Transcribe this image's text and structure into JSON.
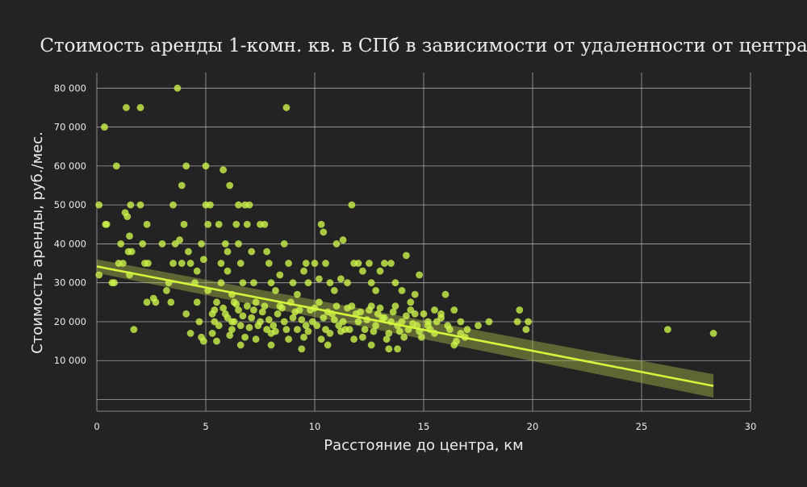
{
  "chart_data": {
    "type": "scatter",
    "title": "Стоимость аренды 1-комн. кв. в СПб в зависимости от удаленности от центра",
    "xlabel": "Расстояние до центра, км",
    "ylabel": "Стоимость аренды, руб./мес.",
    "xlim": [
      0,
      30
    ],
    "ylim": [
      -3000,
      84000
    ],
    "x_ticks": [
      0,
      5,
      10,
      15,
      20,
      25,
      30
    ],
    "x_tick_labels": [
      "0",
      "5",
      "10",
      "15",
      "20",
      "25",
      "30"
    ],
    "y_ticks": [
      10000,
      20000,
      30000,
      40000,
      50000,
      60000,
      70000,
      80000
    ],
    "y_tick_labels": [
      "10 000",
      "20 000",
      "30 000",
      "40 000",
      "50 000",
      "60 000",
      "70 000",
      "80 000"
    ],
    "grid": true,
    "colors": {
      "background": "#232323",
      "grid": "#bdbdbd",
      "points": "#ccf24a",
      "regression": "#d4f53c",
      "confidence_band": "#a9b84a",
      "text": "#ececec"
    },
    "regression": {
      "x_start": 0,
      "y_start": 34200,
      "x_end": 28.3,
      "y_end": 3500
    },
    "confidence_band": {
      "lower_start": 32500,
      "upper_start": 36000,
      "lower_end": 500,
      "upper_end": 6500
    },
    "points": [
      [
        0.1,
        50000
      ],
      [
        0.1,
        32000
      ],
      [
        0.35,
        70000
      ],
      [
        0.4,
        45000
      ],
      [
        0.45,
        45000
      ],
      [
        0.7,
        30000
      ],
      [
        0.8,
        30000
      ],
      [
        0.9,
        60000
      ],
      [
        1.0,
        35000
      ],
      [
        1.1,
        40000
      ],
      [
        1.2,
        35000
      ],
      [
        1.3,
        48000
      ],
      [
        1.35,
        75000
      ],
      [
        1.4,
        47000
      ],
      [
        1.45,
        38000
      ],
      [
        1.5,
        42000
      ],
      [
        1.5,
        32000
      ],
      [
        1.55,
        50000
      ],
      [
        1.6,
        38000
      ],
      [
        1.7,
        18000
      ],
      [
        2.0,
        75000
      ],
      [
        2.0,
        50000
      ],
      [
        2.1,
        40000
      ],
      [
        2.2,
        35000
      ],
      [
        2.3,
        45000
      ],
      [
        2.35,
        35000
      ],
      [
        2.3,
        25000
      ],
      [
        2.6,
        26000
      ],
      [
        2.7,
        25000
      ],
      [
        3.0,
        40000
      ],
      [
        3.2,
        28000
      ],
      [
        3.3,
        30000
      ],
      [
        3.4,
        25000
      ],
      [
        3.5,
        35000
      ],
      [
        3.5,
        50000
      ],
      [
        3.6,
        40000
      ],
      [
        3.7,
        80000
      ],
      [
        3.8,
        41000
      ],
      [
        3.9,
        55000
      ],
      [
        3.9,
        35000
      ],
      [
        4.0,
        45000
      ],
      [
        4.1,
        60000
      ],
      [
        4.1,
        22000
      ],
      [
        4.2,
        38000
      ],
      [
        4.3,
        35000
      ],
      [
        4.3,
        17000
      ],
      [
        4.5,
        30000
      ],
      [
        4.6,
        33000
      ],
      [
        4.6,
        25000
      ],
      [
        4.7,
        20000
      ],
      [
        4.8,
        16000
      ],
      [
        4.8,
        40000
      ],
      [
        4.9,
        15000
      ],
      [
        4.9,
        36000
      ],
      [
        5.0,
        60000
      ],
      [
        5.0,
        50000
      ],
      [
        5.1,
        45000
      ],
      [
        5.1,
        28000
      ],
      [
        5.2,
        50000
      ],
      [
        5.3,
        22000
      ],
      [
        5.4,
        23000
      ],
      [
        5.5,
        15000
      ],
      [
        5.6,
        45000
      ],
      [
        5.7,
        35000
      ],
      [
        5.7,
        30000
      ],
      [
        5.8,
        59000
      ],
      [
        5.9,
        40000
      ],
      [
        6.0,
        38000
      ],
      [
        6.0,
        33000
      ],
      [
        6.1,
        55000
      ],
      [
        6.2,
        27000
      ],
      [
        6.3,
        25000
      ],
      [
        6.3,
        20000
      ],
      [
        6.4,
        45000
      ],
      [
        6.5,
        50000
      ],
      [
        6.5,
        40000
      ],
      [
        6.6,
        35000
      ],
      [
        6.7,
        30000
      ],
      [
        6.8,
        50000
      ],
      [
        6.9,
        45000
      ],
      [
        7.0,
        50000
      ],
      [
        7.1,
        38000
      ],
      [
        7.2,
        30000
      ],
      [
        7.3,
        25000
      ],
      [
        7.5,
        45000
      ],
      [
        7.7,
        45000
      ],
      [
        7.8,
        38000
      ],
      [
        7.9,
        35000
      ],
      [
        8.0,
        30000
      ],
      [
        8.2,
        28000
      ],
      [
        8.4,
        32000
      ],
      [
        8.6,
        40000
      ],
      [
        8.7,
        75000
      ],
      [
        8.8,
        35000
      ],
      [
        9.0,
        30000
      ],
      [
        9.2,
        27000
      ],
      [
        9.5,
        33000
      ],
      [
        9.6,
        35000
      ],
      [
        9.7,
        30000
      ],
      [
        10.0,
        35000
      ],
      [
        10.2,
        31000
      ],
      [
        10.3,
        45000
      ],
      [
        10.4,
        43000
      ],
      [
        10.5,
        35000
      ],
      [
        10.7,
        30000
      ],
      [
        10.9,
        28000
      ],
      [
        11.0,
        40000
      ],
      [
        11.2,
        31000
      ],
      [
        11.3,
        41000
      ],
      [
        11.5,
        30000
      ],
      [
        11.7,
        50000
      ],
      [
        11.8,
        35000
      ],
      [
        12.0,
        35000
      ],
      [
        12.2,
        33000
      ],
      [
        12.5,
        35000
      ],
      [
        12.6,
        30000
      ],
      [
        12.8,
        28000
      ],
      [
        13.0,
        33000
      ],
      [
        13.2,
        35000
      ],
      [
        13.5,
        35000
      ],
      [
        13.7,
        30000
      ],
      [
        14.0,
        28000
      ],
      [
        14.2,
        37000
      ],
      [
        14.4,
        25000
      ],
      [
        14.6,
        27000
      ],
      [
        14.8,
        32000
      ],
      [
        15.0,
        22000
      ],
      [
        15.2,
        20000
      ],
      [
        15.5,
        23000
      ],
      [
        15.6,
        20000
      ],
      [
        15.8,
        22000
      ],
      [
        16.0,
        27000
      ],
      [
        16.2,
        18000
      ],
      [
        16.5,
        15000
      ],
      [
        16.7,
        17000
      ],
      [
        17.0,
        18000
      ],
      [
        17.5,
        19000
      ],
      [
        18.0,
        20000
      ],
      [
        19.3,
        20000
      ],
      [
        19.4,
        23000
      ],
      [
        19.7,
        18000
      ],
      [
        19.8,
        20000
      ],
      [
        26.2,
        18000
      ],
      [
        28.3,
        17000
      ],
      [
        5.3,
        17000
      ],
      [
        5.6,
        19000
      ],
      [
        5.9,
        22000
      ],
      [
        6.2,
        18000
      ],
      [
        6.5,
        23000
      ],
      [
        6.8,
        16000
      ],
      [
        7.1,
        21000
      ],
      [
        7.4,
        19000
      ],
      [
        7.7,
        24000
      ],
      [
        8.0,
        17000
      ],
      [
        8.3,
        22000
      ],
      [
        8.6,
        20000
      ],
      [
        8.9,
        25000
      ],
      [
        9.2,
        18000
      ],
      [
        9.5,
        16000
      ],
      [
        9.8,
        23000
      ],
      [
        10.1,
        19000
      ],
      [
        10.4,
        21000
      ],
      [
        10.7,
        17000
      ],
      [
        11.0,
        24000
      ],
      [
        11.3,
        20000
      ],
      [
        11.6,
        18000
      ],
      [
        11.9,
        22000
      ],
      [
        12.2,
        16000
      ],
      [
        12.5,
        23000
      ],
      [
        12.8,
        19000
      ],
      [
        13.1,
        21000
      ],
      [
        13.4,
        17000
      ],
      [
        13.7,
        24000
      ],
      [
        14.0,
        20000
      ],
      [
        14.3,
        18000
      ],
      [
        14.6,
        22000
      ],
      [
        14.9,
        16000
      ],
      [
        15.2,
        19000
      ],
      [
        15.5,
        17000
      ],
      [
        15.8,
        21000
      ],
      [
        16.1,
        19000
      ],
      [
        16.4,
        23000
      ],
      [
        16.7,
        20000
      ],
      [
        16.9,
        16000
      ],
      [
        5.5,
        25000
      ],
      [
        6.0,
        21000
      ],
      [
        6.6,
        19000
      ],
      [
        7.2,
        23000
      ],
      [
        7.8,
        18000
      ],
      [
        8.4,
        24000
      ],
      [
        9.0,
        21000
      ],
      [
        9.6,
        19000
      ],
      [
        10.2,
        25000
      ],
      [
        10.8,
        22000
      ],
      [
        11.4,
        18000
      ],
      [
        12.0,
        20000
      ],
      [
        12.6,
        24000
      ],
      [
        13.2,
        21000
      ],
      [
        13.8,
        19000
      ],
      [
        14.4,
        23000
      ],
      [
        5.4,
        20000
      ],
      [
        5.8,
        23500
      ],
      [
        6.1,
        16500
      ],
      [
        6.4,
        24500
      ],
      [
        6.7,
        21500
      ],
      [
        7.0,
        18500
      ],
      [
        7.3,
        15500
      ],
      [
        7.6,
        22500
      ],
      [
        7.9,
        20500
      ],
      [
        8.2,
        17500
      ],
      [
        8.5,
        23500
      ],
      [
        8.8,
        15500
      ],
      [
        9.1,
        22500
      ],
      [
        9.4,
        20500
      ],
      [
        9.7,
        17500
      ],
      [
        10.0,
        23500
      ],
      [
        10.3,
        15500
      ],
      [
        10.6,
        22500
      ],
      [
        10.9,
        20500
      ],
      [
        11.2,
        17500
      ],
      [
        11.5,
        23500
      ],
      [
        11.8,
        15500
      ],
      [
        12.1,
        22500
      ],
      [
        12.4,
        20500
      ],
      [
        12.7,
        17500
      ],
      [
        13.0,
        23500
      ],
      [
        13.3,
        15500
      ],
      [
        13.6,
        22500
      ],
      [
        13.9,
        17500
      ],
      [
        14.2,
        21500
      ],
      [
        14.5,
        19500
      ],
      [
        14.8,
        17500
      ],
      [
        6.2,
        20000
      ],
      [
        7.5,
        20000
      ],
      [
        8.7,
        18000
      ],
      [
        9.9,
        20000
      ],
      [
        11.1,
        19000
      ],
      [
        12.3,
        18000
      ],
      [
        13.5,
        20000
      ],
      [
        14.7,
        19000
      ],
      [
        6.9,
        24000
      ],
      [
        8.1,
        19000
      ],
      [
        9.3,
        23000
      ],
      [
        10.5,
        18000
      ],
      [
        11.7,
        24000
      ],
      [
        12.9,
        22000
      ],
      [
        14.1,
        16000
      ],
      [
        15.3,
        18000
      ],
      [
        9.4,
        13000
      ],
      [
        10.6,
        14000
      ],
      [
        12.6,
        14000
      ],
      [
        13.4,
        13000
      ],
      [
        13.8,
        13000
      ],
      [
        16.4,
        14000
      ],
      [
        8.0,
        14000
      ],
      [
        6.6,
        14000
      ]
    ]
  }
}
